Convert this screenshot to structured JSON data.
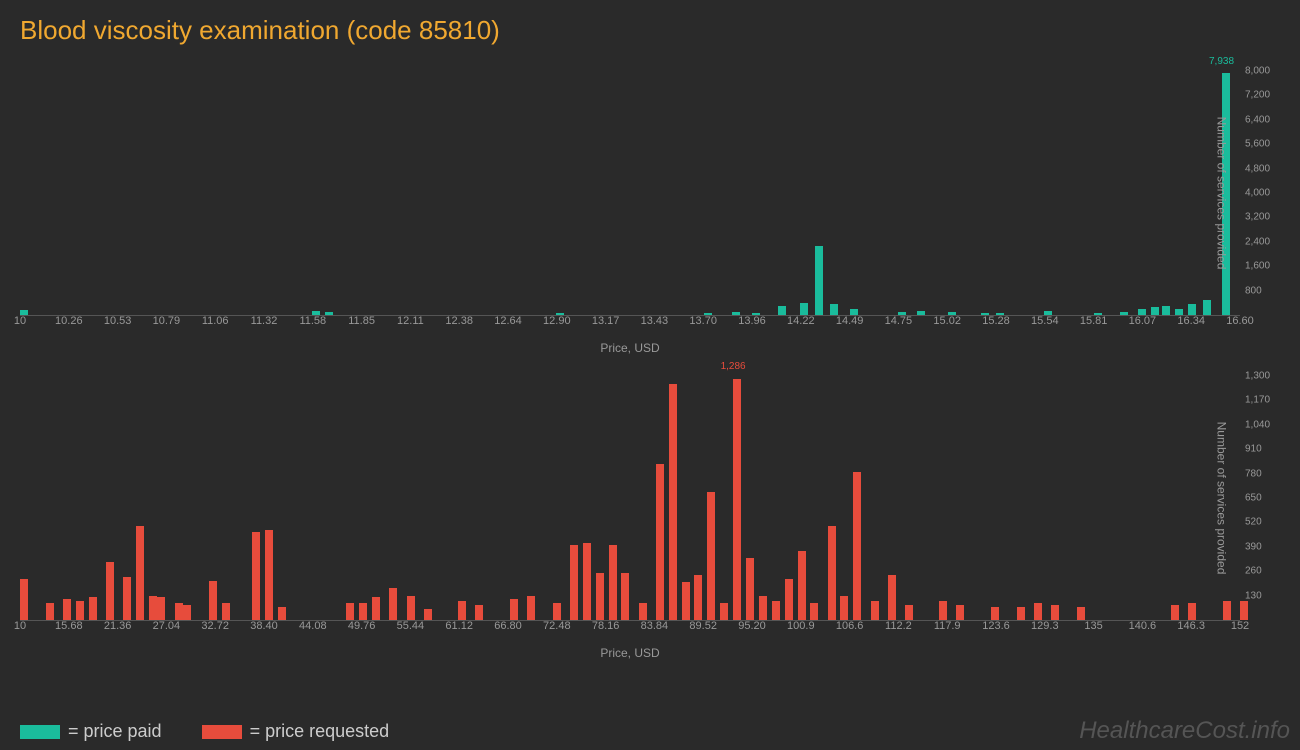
{
  "title": "Blood viscosity examination (code 85810)",
  "watermark": "HealthcareCost.info",
  "legend": {
    "paid": "= price paid",
    "requested": "= price requested"
  },
  "chart1": {
    "type": "bar",
    "series_color": "#1abc9c",
    "background_color": "#2a2a2a",
    "grid_color": "#555555",
    "text_color": "#999999",
    "xlabel": "Price, USD",
    "ylabel": "Number of services provided",
    "xlim": [
      10,
      16.6
    ],
    "ylim": [
      0,
      8000
    ],
    "x_ticks": [
      "10",
      "10.26",
      "10.53",
      "10.79",
      "11.06",
      "11.32",
      "11.58",
      "11.85",
      "12.11",
      "12.38",
      "12.64",
      "12.90",
      "13.17",
      "13.43",
      "13.70",
      "13.96",
      "14.22",
      "14.49",
      "14.75",
      "15.02",
      "15.28",
      "15.54",
      "15.81",
      "16.07",
      "16.34",
      "16.60"
    ],
    "y_ticks": [
      "800",
      "1,600",
      "2,400",
      "3,200",
      "4,000",
      "4,800",
      "5,600",
      "6,400",
      "7,200",
      "8,000"
    ],
    "peak_label": "7,938",
    "peak_x": 16.5,
    "label_fontsize": 12,
    "tick_fontsize": 11,
    "bars": [
      {
        "x": 10.0,
        "y": 180
      },
      {
        "x": 11.58,
        "y": 120
      },
      {
        "x": 11.65,
        "y": 100
      },
      {
        "x": 12.9,
        "y": 80
      },
      {
        "x": 13.7,
        "y": 60
      },
      {
        "x": 13.85,
        "y": 100
      },
      {
        "x": 13.96,
        "y": 80
      },
      {
        "x": 14.1,
        "y": 280
      },
      {
        "x": 14.22,
        "y": 400
      },
      {
        "x": 14.3,
        "y": 2250
      },
      {
        "x": 14.38,
        "y": 350
      },
      {
        "x": 14.49,
        "y": 200
      },
      {
        "x": 14.75,
        "y": 100
      },
      {
        "x": 14.85,
        "y": 120
      },
      {
        "x": 15.02,
        "y": 100
      },
      {
        "x": 15.2,
        "y": 80
      },
      {
        "x": 15.28,
        "y": 60
      },
      {
        "x": 15.54,
        "y": 120
      },
      {
        "x": 15.81,
        "y": 80
      },
      {
        "x": 15.95,
        "y": 100
      },
      {
        "x": 16.05,
        "y": 200
      },
      {
        "x": 16.12,
        "y": 250
      },
      {
        "x": 16.18,
        "y": 300
      },
      {
        "x": 16.25,
        "y": 200
      },
      {
        "x": 16.32,
        "y": 350
      },
      {
        "x": 16.4,
        "y": 500
      },
      {
        "x": 16.5,
        "y": 7938
      }
    ]
  },
  "chart2": {
    "type": "bar",
    "series_color": "#e74c3c",
    "background_color": "#2a2a2a",
    "grid_color": "#555555",
    "text_color": "#999999",
    "xlabel": "Price, USD",
    "ylabel": "Number of services provided",
    "xlim": [
      10,
      152
    ],
    "ylim": [
      0,
      1300
    ],
    "x_ticks": [
      "10",
      "15.68",
      "21.36",
      "27.04",
      "32.72",
      "38.40",
      "44.08",
      "49.76",
      "55.44",
      "61.12",
      "66.80",
      "72.48",
      "78.16",
      "83.84",
      "89.52",
      "95.20",
      "100.9",
      "106.6",
      "112.2",
      "117.9",
      "123.6",
      "129.3",
      "135",
      "140.6",
      "146.3",
      "152"
    ],
    "y_ticks": [
      "130",
      "260",
      "390",
      "520",
      "650",
      "780",
      "910",
      "1,040",
      "1,170",
      "1,300"
    ],
    "peak_label": "1,286",
    "peak_x": 93,
    "label_fontsize": 12,
    "tick_fontsize": 11,
    "bars": [
      {
        "x": 10,
        "y": 220
      },
      {
        "x": 13,
        "y": 90
      },
      {
        "x": 15,
        "y": 110
      },
      {
        "x": 16.5,
        "y": 100
      },
      {
        "x": 18,
        "y": 120
      },
      {
        "x": 20,
        "y": 310
      },
      {
        "x": 22,
        "y": 230
      },
      {
        "x": 23.5,
        "y": 500
      },
      {
        "x": 25,
        "y": 130
      },
      {
        "x": 26,
        "y": 120
      },
      {
        "x": 28,
        "y": 90
      },
      {
        "x": 29,
        "y": 80
      },
      {
        "x": 32,
        "y": 210
      },
      {
        "x": 33.5,
        "y": 90
      },
      {
        "x": 37,
        "y": 470
      },
      {
        "x": 38.5,
        "y": 480
      },
      {
        "x": 40,
        "y": 70
      },
      {
        "x": 48,
        "y": 90
      },
      {
        "x": 49.5,
        "y": 90
      },
      {
        "x": 51,
        "y": 120
      },
      {
        "x": 53,
        "y": 170
      },
      {
        "x": 55,
        "y": 130
      },
      {
        "x": 57,
        "y": 60
      },
      {
        "x": 61,
        "y": 100
      },
      {
        "x": 63,
        "y": 80
      },
      {
        "x": 67,
        "y": 110
      },
      {
        "x": 69,
        "y": 130
      },
      {
        "x": 72,
        "y": 90
      },
      {
        "x": 74,
        "y": 400
      },
      {
        "x": 75.5,
        "y": 410
      },
      {
        "x": 77,
        "y": 250
      },
      {
        "x": 78.5,
        "y": 400
      },
      {
        "x": 80,
        "y": 250
      },
      {
        "x": 82,
        "y": 90
      },
      {
        "x": 84,
        "y": 830
      },
      {
        "x": 85.5,
        "y": 1260
      },
      {
        "x": 87,
        "y": 200
      },
      {
        "x": 88.5,
        "y": 240
      },
      {
        "x": 90,
        "y": 680
      },
      {
        "x": 91.5,
        "y": 90
      },
      {
        "x": 93,
        "y": 1286
      },
      {
        "x": 94.5,
        "y": 330
      },
      {
        "x": 96,
        "y": 130
      },
      {
        "x": 97.5,
        "y": 100
      },
      {
        "x": 99,
        "y": 220
      },
      {
        "x": 100.5,
        "y": 370
      },
      {
        "x": 102,
        "y": 90
      },
      {
        "x": 104,
        "y": 500
      },
      {
        "x": 105.5,
        "y": 130
      },
      {
        "x": 107,
        "y": 790
      },
      {
        "x": 109,
        "y": 100
      },
      {
        "x": 111,
        "y": 240
      },
      {
        "x": 113,
        "y": 80
      },
      {
        "x": 117,
        "y": 100
      },
      {
        "x": 119,
        "y": 80
      },
      {
        "x": 123,
        "y": 70
      },
      {
        "x": 126,
        "y": 70
      },
      {
        "x": 128,
        "y": 90
      },
      {
        "x": 130,
        "y": 80
      },
      {
        "x": 133,
        "y": 70
      },
      {
        "x": 144,
        "y": 80
      },
      {
        "x": 146,
        "y": 90
      },
      {
        "x": 150,
        "y": 100
      },
      {
        "x": 152,
        "y": 100
      }
    ]
  }
}
